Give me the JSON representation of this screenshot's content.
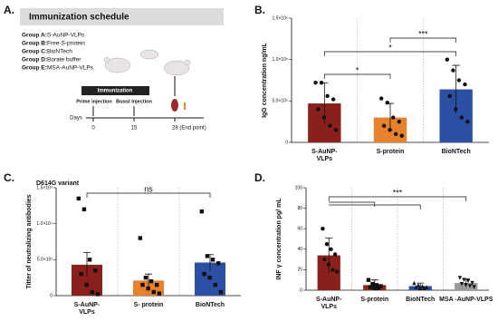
{
  "panel_labels": [
    "A.",
    "B.",
    "C.",
    "D."
  ],
  "diagram": {
    "title": "Immunization schedule",
    "groups": [
      {
        "label": "Group A:",
        "text": "S-AuNP-VLPs"
      },
      {
        "label": "Group B:",
        "text": "Free-S-protein"
      },
      {
        "label": "Group C:",
        "text": "BioNTech"
      },
      {
        "label": "Group D:",
        "text": "Borate buffer"
      },
      {
        "label": "Group E:",
        "text": "MSA-AuNP-VLPs"
      }
    ],
    "box": "Immunization",
    "prime": "Prime injection",
    "boost": "Boost Injection",
    "axis_label": "Days",
    "days": [
      "0",
      "15",
      "28 (End point)"
    ]
  },
  "chart_data": [
    {
      "type": "bar",
      "y_label": "IgG concentration ng/mL",
      "categories": [
        "S-AuNP-VLPs",
        "S-protein",
        "BioNTech"
      ],
      "colors": [
        "#8b1f1c",
        "#e8812c",
        "#2b4fa3"
      ],
      "values": [
        470000,
        300000,
        640000
      ],
      "errors": [
        250000,
        170000,
        290000
      ],
      "points": [
        [
          720000,
          720000,
          560000,
          520000,
          400000,
          300000,
          200000,
          150000
        ],
        [
          530000,
          480000,
          300000,
          250000,
          200000,
          150000,
          100000,
          80000
        ],
        [
          1000000,
          870000,
          750000,
          700000,
          560000,
          400000,
          300000,
          250000
        ]
      ],
      "ylim": [
        0,
        1500000
      ],
      "yticks": [
        0,
        {
          "value": 500000,
          "label": "5.0×10⁵"
        },
        {
          "value": 1000000,
          "label": "1.0×10⁶"
        },
        {
          "value": 1500000,
          "label": "1.5×10⁶"
        }
      ],
      "significance": [
        "*",
        "***",
        "*"
      ]
    },
    {
      "type": "bar",
      "subtitle": "D614G variant",
      "y_label": "Titter of  neutralizing antibodies",
      "categories": [
        "S-AuNP-VLPs",
        "S- protein",
        "BioNTech"
      ],
      "colors": [
        "#8b1f1c",
        "#e8812c",
        "#2b4fa3"
      ],
      "values": [
        4300,
        2100,
        4600
      ],
      "errors": [
        1700,
        900,
        1100
      ],
      "points": [
        [
          13500,
          12000,
          5000,
          3500,
          3000,
          1500,
          500,
          200
        ],
        [
          8000,
          2500,
          2000,
          1500,
          1500,
          1000,
          500,
          300
        ],
        [
          11700,
          5500,
          5000,
          4500,
          3000,
          2500,
          1500,
          500
        ]
      ],
      "ylim": [
        0,
        15000
      ],
      "yticks": [
        0,
        {
          "value": 5000,
          "label": "5.0×10³"
        },
        {
          "value": 10000,
          "label": "1.0×10⁴"
        },
        {
          "value": 15000,
          "label": "1.5×10⁴"
        }
      ],
      "significance": [
        "ns"
      ]
    },
    {
      "type": "bar",
      "y_label": "INF γ concentration pg/ mL",
      "categories": [
        "S-AuNP-VLPs",
        "S-protein",
        "BioNTech",
        "MSA -AuNP-VLPS"
      ],
      "colors": [
        "#8b1f1c",
        "#8b2a1c",
        "#2b4fa3",
        "#9a9a9a"
      ],
      "values": [
        34,
        5,
        4,
        7
      ],
      "errors": [
        17,
        5,
        3,
        4
      ],
      "points": [
        [
          60,
          45,
          40,
          35,
          30,
          25,
          20,
          18
        ],
        [
          10,
          6,
          5,
          4,
          3,
          2,
          2
        ],
        [
          7,
          5,
          4,
          3,
          3,
          2,
          2
        ],
        [
          12,
          10,
          9,
          7,
          6,
          5,
          4,
          3
        ]
      ],
      "ylim": [
        0,
        100
      ],
      "yticks": [
        0,
        20,
        40,
        60,
        80,
        100
      ],
      "significance": [
        "***"
      ]
    }
  ]
}
